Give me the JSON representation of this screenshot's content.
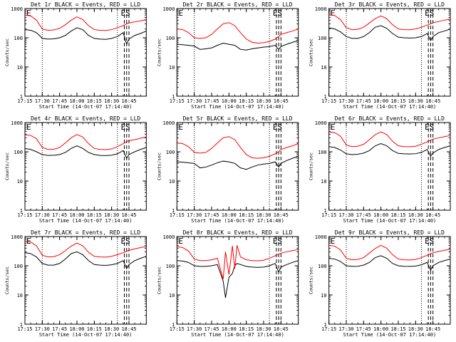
{
  "figure": {
    "shared": {
      "xlabel": "Start Time (14-Oct-07 17:14:40)",
      "ylabel": "Counts/sec",
      "x_tick_labels": [
        "17:15",
        "17:30",
        "17:45",
        "18:00",
        "18:15",
        "18:30",
        "18:45"
      ],
      "x_tick_values": [
        0,
        15,
        30,
        45,
        60,
        75,
        90
      ],
      "y_tick_labels": [
        "1",
        "10",
        "100",
        "1000"
      ],
      "y_tick_values": [
        1,
        10,
        100,
        1000
      ],
      "xlim": [
        0,
        105
      ],
      "ylim": [
        1,
        1000
      ],
      "y_scale": "log",
      "markers": [
        {
          "label": "E",
          "x": 0
        },
        {
          "label": "E",
          "x": 86
        },
        {
          "label": "S",
          "x": 90
        }
      ],
      "dotted_vlines": [
        15,
        80
      ],
      "dashed_vlines": [
        86,
        88,
        90
      ]
    },
    "colors": {
      "events": "#000000",
      "lld": "#ff0000",
      "axes": "#000000",
      "background": "#ffffff"
    }
  },
  "chart_data": [
    {
      "type": "line",
      "title": "Det 1r BLACK = Events, RED = LLD",
      "x": [
        0,
        5,
        10,
        15,
        20,
        25,
        30,
        35,
        40,
        45,
        50,
        55,
        60,
        65,
        70,
        75,
        80,
        85,
        88,
        90,
        95,
        100,
        105
      ],
      "series": [
        {
          "name": "Events",
          "color": "#000000",
          "values": [
            190,
            180,
            150,
            95,
            90,
            92,
            100,
            120,
            170,
            220,
            190,
            120,
            95,
            90,
            88,
            95,
            110,
            150,
            60,
            90,
            120,
            140,
            170
          ]
        },
        {
          "name": "LLD",
          "color": "#ff0000",
          "values": [
            600,
            560,
            400,
            200,
            180,
            185,
            210,
            280,
            400,
            520,
            420,
            260,
            190,
            180,
            178,
            190,
            220,
            260,
            300,
            320,
            350,
            380,
            420
          ]
        }
      ]
    },
    {
      "type": "line",
      "title": "Det 2r BLACK = Events, RED = LLD",
      "x": [
        0,
        5,
        10,
        15,
        20,
        25,
        30,
        35,
        40,
        45,
        50,
        55,
        60,
        65,
        70,
        75,
        80,
        85,
        88,
        90,
        95,
        100,
        105
      ],
      "series": [
        {
          "name": "Events",
          "color": "#000000",
          "values": [
            60,
            58,
            55,
            52,
            40,
            42,
            45,
            55,
            65,
            60,
            55,
            40,
            38,
            42,
            45,
            48,
            50,
            55,
            40,
            50,
            60,
            70,
            80
          ]
        },
        {
          "name": "LLD",
          "color": "#ff0000",
          "values": [
            200,
            190,
            150,
            100,
            95,
            100,
            130,
            200,
            300,
            330,
            260,
            150,
            90,
            70,
            65,
            68,
            75,
            90,
            110,
            130,
            150,
            170,
            200
          ]
        }
      ]
    },
    {
      "type": "line",
      "title": "Det 3r BLACK = Events, RED = LLD",
      "x": [
        0,
        5,
        10,
        15,
        20,
        25,
        30,
        35,
        40,
        45,
        50,
        55,
        60,
        65,
        70,
        75,
        80,
        85,
        88,
        90,
        95,
        100,
        105
      ],
      "series": [
        {
          "name": "Events",
          "color": "#000000",
          "values": [
            220,
            200,
            160,
            110,
            95,
            95,
            110,
            150,
            230,
            260,
            210,
            140,
            105,
            100,
            98,
            100,
            110,
            140,
            80,
            110,
            150,
            170,
            200
          ]
        },
        {
          "name": "LLD",
          "color": "#ff0000",
          "values": [
            620,
            580,
            420,
            220,
            190,
            195,
            230,
            320,
            450,
            560,
            450,
            280,
            200,
            190,
            188,
            200,
            230,
            270,
            300,
            330,
            360,
            400,
            440
          ]
        }
      ]
    },
    {
      "type": "line",
      "title": "Det 4r BLACK = Events, RED = LLD",
      "x": [
        0,
        5,
        10,
        15,
        20,
        25,
        30,
        35,
        40,
        45,
        50,
        55,
        60,
        65,
        70,
        75,
        80,
        85,
        88,
        90,
        95,
        100,
        105
      ],
      "series": [
        {
          "name": "Events",
          "color": "#000000",
          "values": [
            130,
            120,
            100,
            80,
            75,
            76,
            80,
            95,
            130,
            160,
            130,
            95,
            80,
            75,
            74,
            76,
            85,
            110,
            60,
            80,
            100,
            120,
            140
          ]
        },
        {
          "name": "LLD",
          "color": "#ff0000",
          "values": [
            380,
            360,
            280,
            140,
            120,
            122,
            140,
            200,
            300,
            390,
            320,
            190,
            130,
            120,
            118,
            125,
            150,
            190,
            220,
            240,
            260,
            290,
            320
          ]
        }
      ]
    },
    {
      "type": "line",
      "title": "Det 5r BLACK = Events, RED = LLD",
      "x": [
        0,
        5,
        10,
        15,
        20,
        25,
        30,
        35,
        40,
        45,
        50,
        55,
        60,
        65,
        70,
        75,
        80,
        85,
        88,
        90,
        95,
        100,
        105
      ],
      "series": [
        {
          "name": "Events",
          "color": "#000000",
          "values": [
            45,
            44,
            42,
            40,
            28,
            30,
            35,
            42,
            48,
            45,
            40,
            28,
            25,
            30,
            35,
            38,
            40,
            45,
            30,
            40,
            50,
            60,
            70
          ]
        },
        {
          "name": "LLD",
          "color": "#ff0000",
          "values": [
            200,
            190,
            150,
            95,
            90,
            95,
            130,
            200,
            300,
            330,
            260,
            140,
            80,
            62,
            60,
            62,
            70,
            85,
            100,
            120,
            140,
            160,
            190
          ]
        }
      ]
    },
    {
      "type": "line",
      "title": "Det 6r BLACK = Events, RED = LLD",
      "x": [
        0,
        5,
        10,
        15,
        20,
        25,
        30,
        35,
        40,
        45,
        50,
        55,
        60,
        65,
        70,
        75,
        80,
        85,
        88,
        90,
        95,
        100,
        105
      ],
      "series": [
        {
          "name": "Events",
          "color": "#000000",
          "values": [
            150,
            140,
            115,
            85,
            80,
            82,
            90,
            110,
            160,
            190,
            160,
            110,
            88,
            85,
            84,
            86,
            95,
            120,
            70,
            90,
            120,
            140,
            160
          ]
        },
        {
          "name": "LLD",
          "color": "#ff0000",
          "values": [
            480,
            450,
            340,
            170,
            150,
            155,
            180,
            260,
            380,
            480,
            390,
            230,
            160,
            150,
            148,
            155,
            180,
            220,
            250,
            270,
            300,
            330,
            360
          ]
        }
      ]
    },
    {
      "type": "line",
      "title": "Det 7r BLACK = Events, RED = LLD",
      "x": [
        0,
        5,
        10,
        15,
        20,
        25,
        30,
        35,
        40,
        45,
        50,
        55,
        60,
        65,
        70,
        75,
        80,
        85,
        88,
        90,
        95,
        100,
        105
      ],
      "series": [
        {
          "name": "Events",
          "color": "#000000",
          "values": [
            280,
            260,
            200,
            120,
            105,
            105,
            120,
            170,
            260,
            300,
            240,
            150,
            110,
            105,
            103,
            108,
            120,
            150,
            80,
            110,
            150,
            180,
            210
          ]
        },
        {
          "name": "LLD",
          "color": "#ff0000",
          "values": [
            700,
            650,
            480,
            230,
            200,
            205,
            240,
            330,
            470,
            600,
            480,
            290,
            210,
            200,
            198,
            210,
            240,
            280,
            310,
            340,
            380,
            420,
            460
          ]
        }
      ]
    },
    {
      "type": "line",
      "title": "Det 8r BLACK = Events, RED = LLD",
      "x": [
        0,
        5,
        10,
        15,
        20,
        25,
        30,
        35,
        40,
        42,
        45,
        48,
        50,
        52,
        55,
        60,
        65,
        70,
        75,
        80,
        85,
        88,
        90,
        95,
        100,
        105
      ],
      "series": [
        {
          "name": "Events",
          "color": "#000000",
          "values": [
            150,
            145,
            130,
            100,
            95,
            95,
            100,
            110,
            30,
            8,
            40,
            55,
            100,
            120,
            110,
            95,
            90,
            88,
            90,
            100,
            120,
            60,
            90,
            110,
            130,
            150
          ]
        },
        {
          "name": "LLD",
          "color": "#ff0000",
          "values": [
            450,
            420,
            320,
            170,
            150,
            150,
            160,
            180,
            35,
            300,
            50,
            480,
            80,
            500,
            200,
            160,
            150,
            148,
            155,
            180,
            220,
            250,
            270,
            300,
            330,
            360
          ]
        }
      ]
    },
    {
      "type": "line",
      "title": "Det 9r BLACK = Events, RED = LLD",
      "x": [
        0,
        5,
        10,
        15,
        20,
        25,
        30,
        35,
        40,
        45,
        50,
        55,
        60,
        65,
        70,
        75,
        80,
        85,
        88,
        90,
        95,
        100,
        105
      ],
      "series": [
        {
          "name": "Events",
          "color": "#000000",
          "values": [
            180,
            170,
            140,
            100,
            95,
            96,
            105,
            130,
            190,
            220,
            180,
            120,
            100,
            96,
            95,
            98,
            108,
            130,
            70,
            100,
            130,
            150,
            170
          ]
        },
        {
          "name": "LLD",
          "color": "#ff0000",
          "values": [
            500,
            470,
            350,
            180,
            160,
            165,
            190,
            270,
            390,
            500,
            400,
            240,
            170,
            160,
            158,
            165,
            190,
            230,
            260,
            280,
            310,
            340,
            370
          ]
        }
      ]
    }
  ]
}
